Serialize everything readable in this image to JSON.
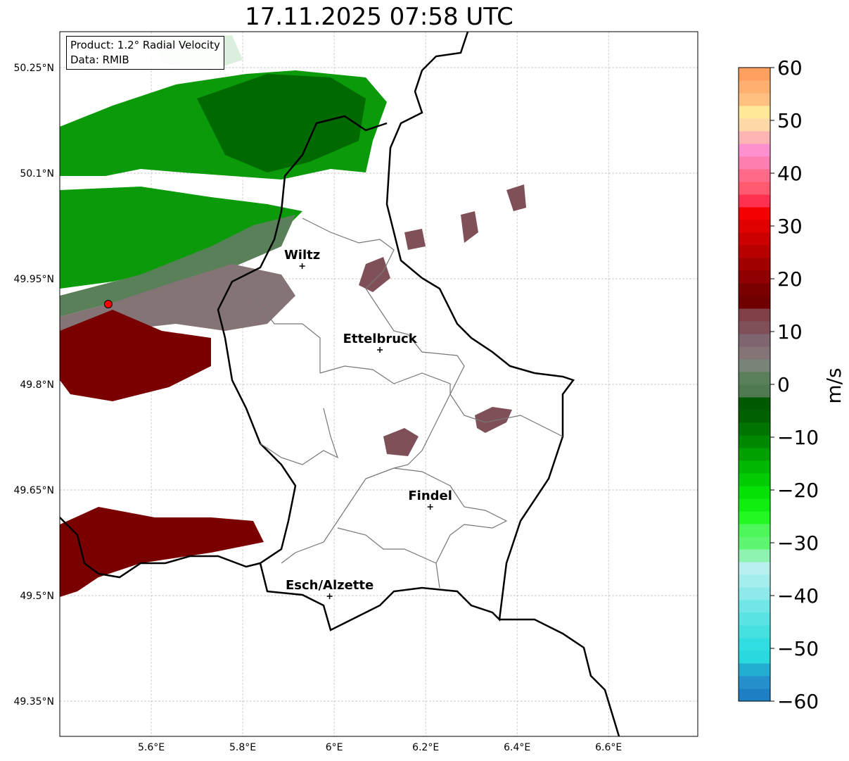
{
  "title": "17.11.2025 07:58 UTC",
  "info_box": {
    "product": "Product: 1.2° Radial Velocity",
    "data": "Data: RMIB"
  },
  "axes": {
    "lon_ticks": [
      {
        "v": 5.6,
        "label": "5.6°E"
      },
      {
        "v": 5.8,
        "label": "5.8°E"
      },
      {
        "v": 6.0,
        "label": "6°E"
      },
      {
        "v": 6.2,
        "label": "6.2°E"
      },
      {
        "v": 6.4,
        "label": "6.4°E"
      },
      {
        "v": 6.6,
        "label": "6.6°E"
      }
    ],
    "lat_ticks": [
      {
        "v": 50.25,
        "label": "50.25°N"
      },
      {
        "v": 50.1,
        "label": "50.1°N"
      },
      {
        "v": 49.95,
        "label": "49.95°N"
      },
      {
        "v": 49.8,
        "label": "49.8°N"
      },
      {
        "v": 49.65,
        "label": "49.65°N"
      },
      {
        "v": 49.5,
        "label": "49.5°N"
      },
      {
        "v": 49.35,
        "label": "49.35°N"
      }
    ],
    "lon_range": [
      5.4,
      6.795
    ],
    "lat_range": [
      49.3,
      50.301
    ]
  },
  "cities": [
    {
      "name": "Wiltz",
      "lon": 5.93,
      "lat": 49.968
    },
    {
      "name": "Ettelbruck",
      "lon": 6.1,
      "lat": 49.849
    },
    {
      "name": "Findel",
      "lon": 6.21,
      "lat": 49.626
    },
    {
      "name": "Esch/Alzette",
      "lon": 5.99,
      "lat": 49.499
    }
  ],
  "radar_site": {
    "lon": 5.506,
    "lat": 49.914,
    "color": "#ff0000"
  },
  "colorbar": {
    "label": "m/s",
    "min": -60,
    "max": 60,
    "ticks": [
      {
        "v": 60,
        "label": "60"
      },
      {
        "v": 50,
        "label": "50"
      },
      {
        "v": 40,
        "label": "40"
      },
      {
        "v": 30,
        "label": "30"
      },
      {
        "v": 20,
        "label": "20"
      },
      {
        "v": 10,
        "label": "10"
      },
      {
        "v": 0,
        "label": "0"
      },
      {
        "v": -10,
        "label": "−10"
      },
      {
        "v": -20,
        "label": "−20"
      },
      {
        "v": -30,
        "label": "−30"
      },
      {
        "v": -40,
        "label": "−40"
      },
      {
        "v": -50,
        "label": "−50"
      },
      {
        "v": -60,
        "label": "−60"
      }
    ],
    "colors": [
      "#1f7fc4",
      "#2590cc",
      "#22aed0",
      "#2ad8e0",
      "#30dde0",
      "#45e0e0",
      "#5ae3e3",
      "#70e6e6",
      "#8de9ea",
      "#a5eeee",
      "#b8f0f0",
      "#8ef2b0",
      "#5ef570",
      "#4df75a",
      "#22f822",
      "#10ee10",
      "#05e005",
      "#00cc00",
      "#00b800",
      "#00a000",
      "#008800",
      "#007400",
      "#006000",
      "#005a00",
      "#4f7a4f",
      "#5a805a",
      "#778477",
      "#857475",
      "#7e6570",
      "#805058",
      "#804048",
      "#700000",
      "#7a0000",
      "#900000",
      "#a00000",
      "#b80000",
      "#cc0000",
      "#e00000",
      "#f50000",
      "#ff3050",
      "#ff5a70",
      "#ff6a88",
      "#ff80b0",
      "#ff90d0",
      "#ffb4b4",
      "#ffd8a8",
      "#ffe898",
      "#ffc080",
      "#ffb070",
      "#ffa060"
    ]
  }
}
